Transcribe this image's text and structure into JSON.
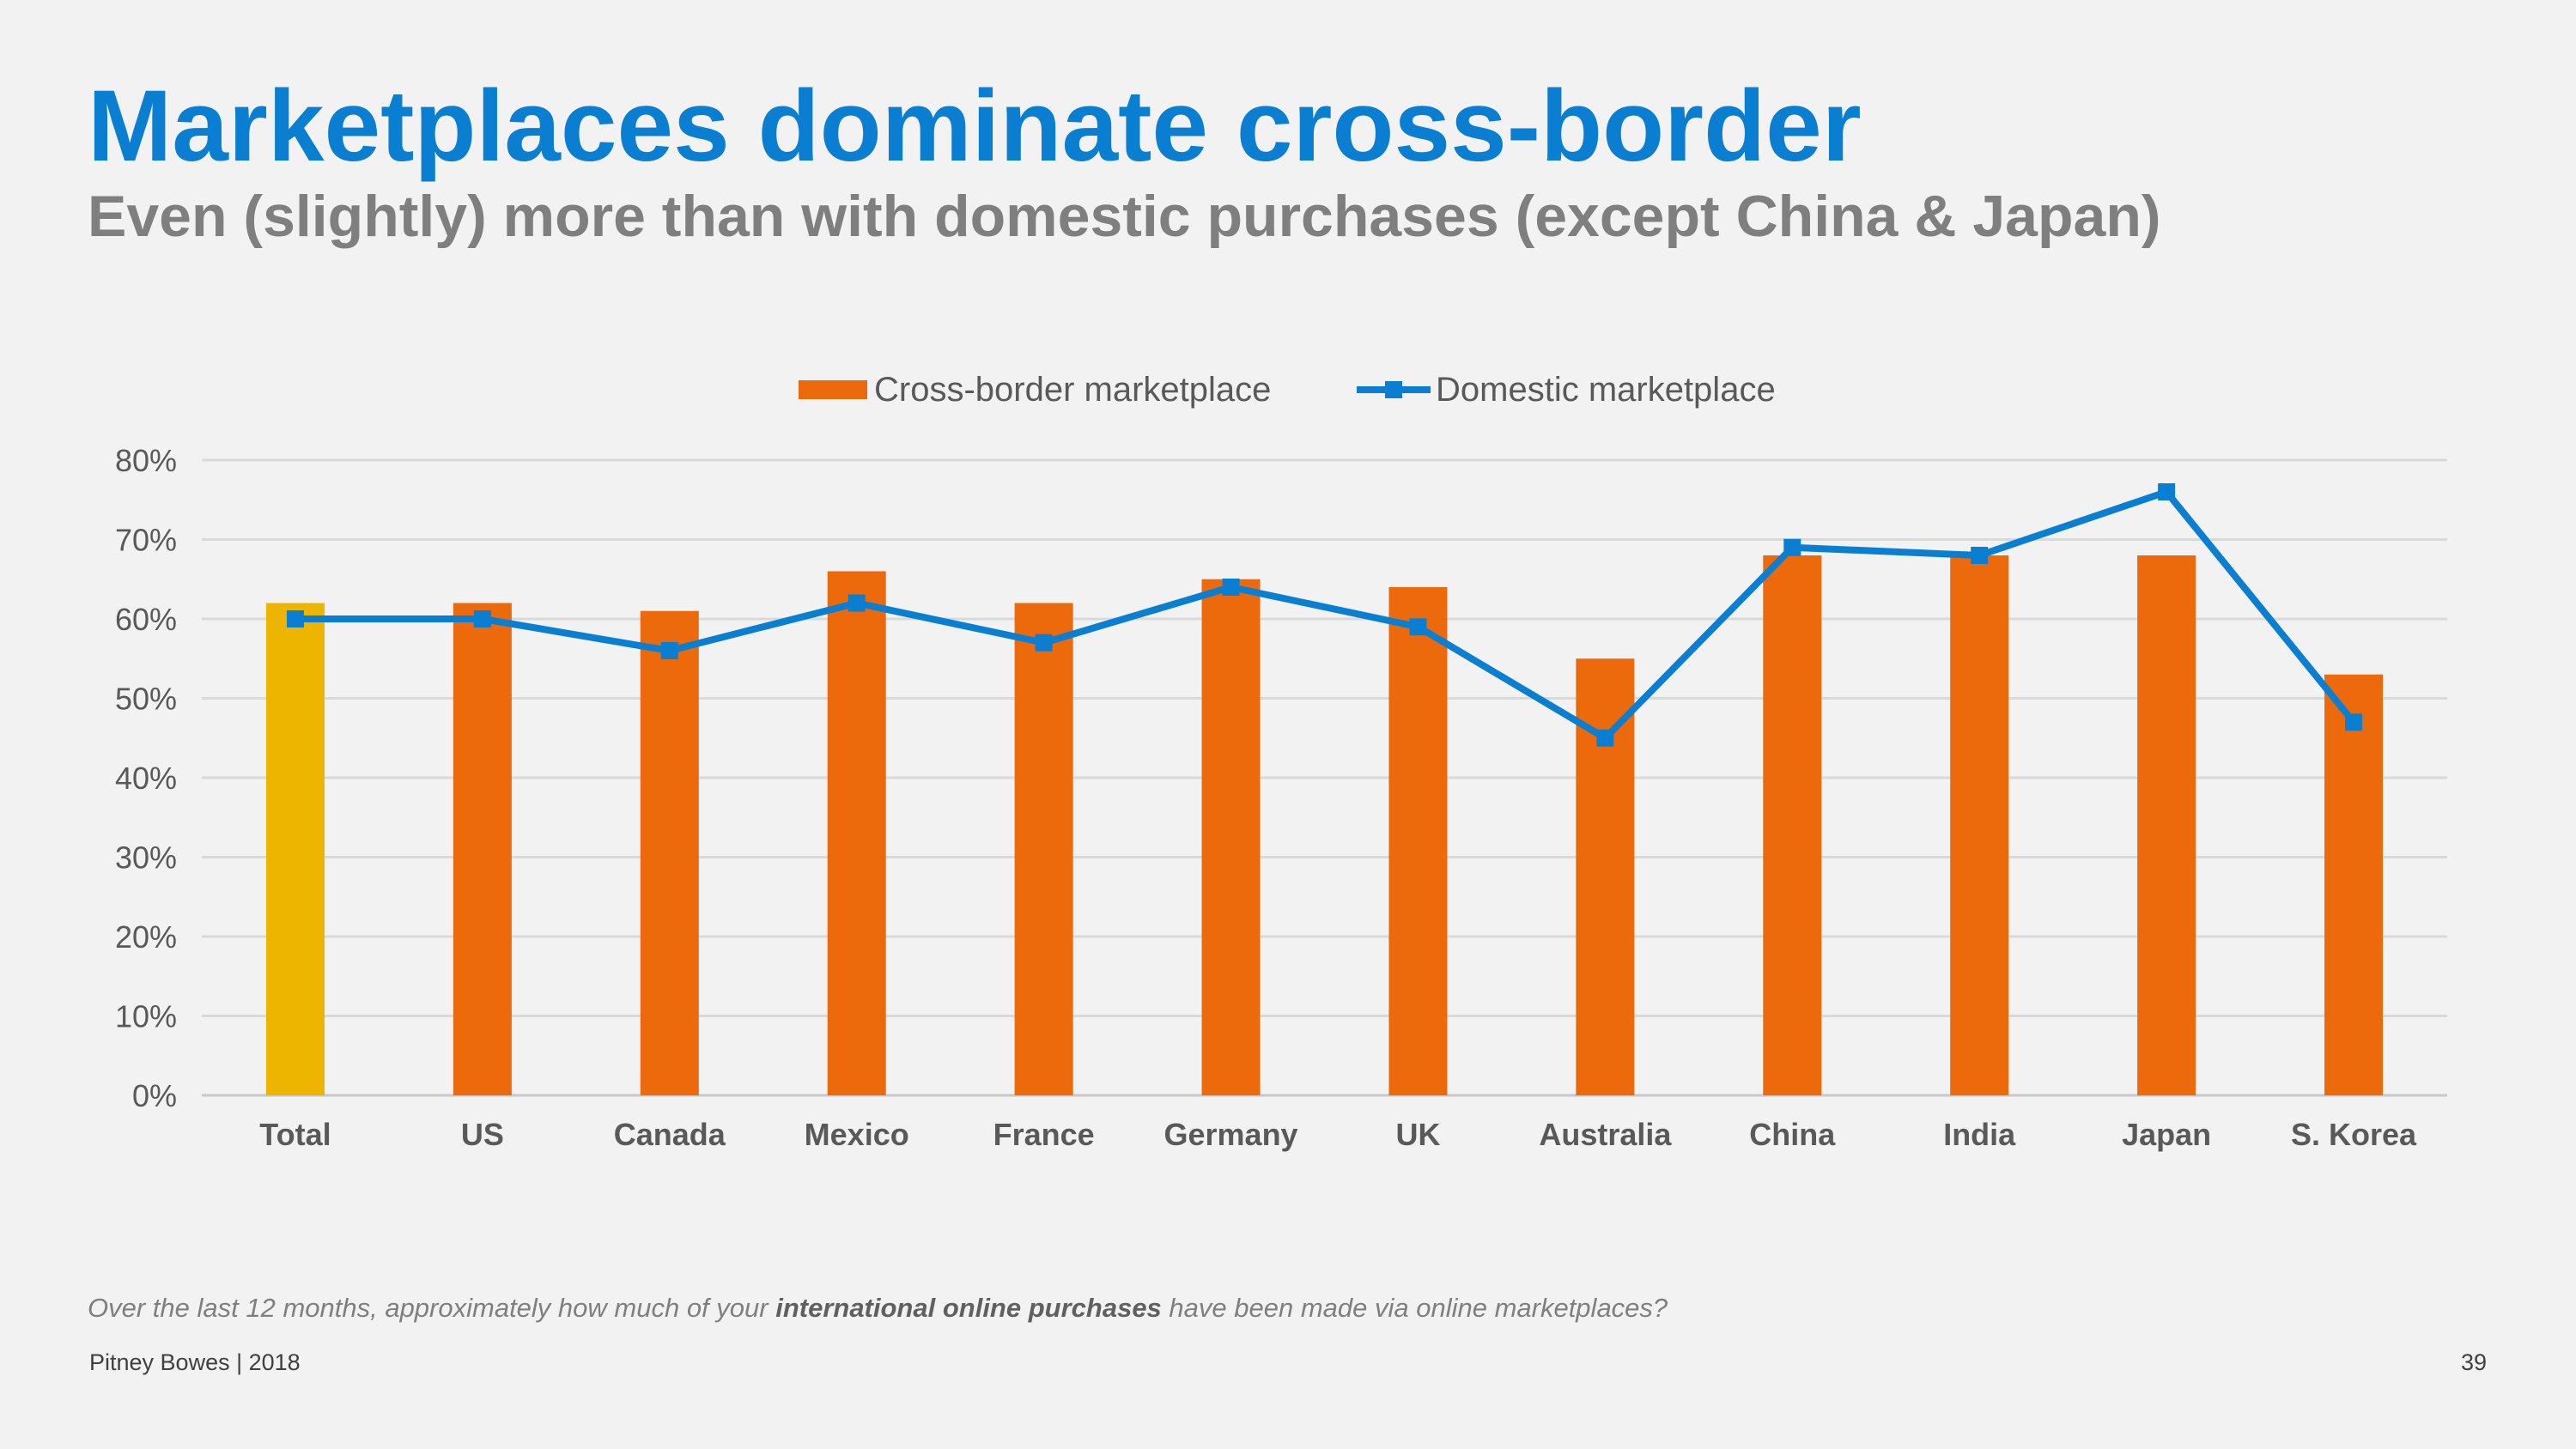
{
  "slide": {
    "title": "Marketplaces dominate cross-border",
    "subtitle": "Even (slightly) more than with domestic purchases (except China & Japan)",
    "footnote": {
      "pre": "Over the last 12 months, approximately how much of your ",
      "bold": "international online purchases",
      "post": " have been made via online marketplaces?"
    },
    "source": "Pitney Bowes | 2018",
    "page_number": "39"
  },
  "chart_data": {
    "type": "bar",
    "categories": [
      "Total",
      "US",
      "Canada",
      "Mexico",
      "France",
      "Germany",
      "UK",
      "Australia",
      "China",
      "India",
      "Japan",
      "S. Korea"
    ],
    "series": [
      {
        "name": "Cross-border marketplace",
        "type": "bar",
        "color": "#ec6a0c",
        "highlight": {
          "category": "Total",
          "color": "#eeb500"
        },
        "values": [
          62,
          62,
          61,
          66,
          62,
          65,
          64,
          55,
          68,
          68,
          68,
          53
        ]
      },
      {
        "name": "Domestic marketplace",
        "type": "line",
        "color": "#0a7fd1",
        "marker": "square",
        "values": [
          60,
          60,
          56,
          62,
          57,
          64,
          59,
          45,
          69,
          68,
          76,
          47
        ]
      }
    ],
    "ylim": [
      0,
      80
    ],
    "yticks": [
      0,
      10,
      20,
      30,
      40,
      50,
      60,
      70,
      80
    ],
    "ytick_labels": [
      "0%",
      "10%",
      "20%",
      "30%",
      "40%",
      "50%",
      "60%",
      "70%",
      "80%"
    ],
    "xlabel": "",
    "ylabel": "",
    "grid": true,
    "legend_position": "top-center"
  }
}
